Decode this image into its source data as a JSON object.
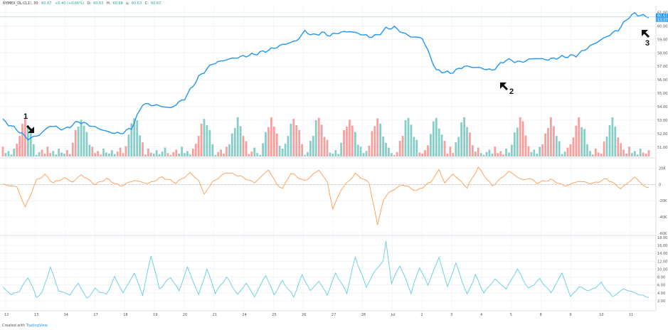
{
  "header": {
    "symbol": "NYMEX_DL:CL1!, 30",
    "last": "60.67",
    "change": "+0.40 (+0.66%)",
    "o_label": "O:",
    "o_value": "60.63",
    "h_label": "H:",
    "h_value": "60.68",
    "l_label": "L:",
    "l_value": "60.63",
    "c_label": "C:",
    "c_value": "60.67"
  },
  "credit": {
    "prefix": "Created with",
    "brand": "TradingView"
  },
  "colors": {
    "price_line": "#2196f3",
    "volume_up": "#26a69a",
    "volume_down": "#ef5350",
    "oscillator": "#ff9b50",
    "volatility": "#63cde0",
    "grid": "#e9ecf2",
    "axis_text": "#555555"
  },
  "chart_data": [
    {
      "panel": "price",
      "type": "line",
      "xlabel": "",
      "ylabel": "",
      "ylim": [
        50.3,
        61.4
      ],
      "y_ticks": [
        "61.00",
        "60.00",
        "59.00",
        "58.00",
        "57.00",
        "56.00",
        "55.00",
        "54.00",
        "53.00",
        "52.00",
        "51.00"
      ],
      "last_price_labels": [
        "60.67",
        "13:37"
      ],
      "x_index": [
        0,
        2,
        5,
        9,
        13,
        17,
        22,
        27,
        30,
        34,
        38,
        42,
        46,
        50,
        55,
        60,
        65,
        70,
        75,
        80,
        85,
        90,
        95,
        100,
        105,
        108,
        111,
        114,
        117,
        120,
        124,
        128,
        131,
        134,
        137,
        140,
        143,
        146,
        150,
        155,
        160,
        165,
        170,
        175,
        180,
        185,
        190,
        195,
        200,
        205,
        210,
        215,
        220,
        224,
        226,
        228,
        231
      ],
      "values": [
        53.0,
        52.7,
        52.3,
        51.6,
        51.9,
        52.6,
        52.3,
        52.9,
        52.7,
        52.4,
        52.1,
        52.0,
        52.4,
        54.2,
        54.1,
        53.9,
        54.6,
        56.2,
        57.2,
        57.5,
        57.7,
        57.9,
        58.2,
        58.6,
        58.9,
        59.6,
        59.3,
        59.5,
        59.3,
        59.5,
        59.6,
        59.4,
        59.2,
        59.3,
        59.8,
        59.9,
        59.5,
        59.2,
        59.1,
        56.7,
        56.5,
        57.0,
        56.9,
        56.7,
        57.5,
        57.3,
        57.6,
        57.5,
        57.7,
        57.8,
        58.5,
        59.1,
        59.7,
        60.7,
        60.9,
        60.8,
        60.67
      ],
      "annotations": [
        "1",
        "2",
        "3"
      ]
    },
    {
      "panel": "volume",
      "type": "bar",
      "description_free": true,
      "pattern": [
        1,
        0.35,
        0.55,
        0.2,
        0.8,
        0.4,
        0.3,
        0.65,
        0.25,
        0.5,
        0.9,
        0.35,
        0.15,
        0.45,
        0.7,
        0.3
      ],
      "spike_index": [
        8,
        28,
        47,
        72,
        84,
        96,
        104,
        113,
        124,
        134,
        145,
        155,
        165,
        185,
        196,
        206,
        218
      ],
      "ylim": [
        0,
        1
      ]
    },
    {
      "panel": "oscillator",
      "type": "line",
      "ylim": [
        -60000,
        30000
      ],
      "y_ticks": [
        "20K",
        "0",
        "-20K",
        "-40K",
        "-60K"
      ],
      "x_index": [
        0,
        5,
        8,
        10,
        12,
        15,
        18,
        22,
        25,
        28,
        33,
        37,
        42,
        47,
        52,
        57,
        62,
        67,
        70,
        72,
        75,
        80,
        85,
        90,
        95,
        98,
        100,
        103,
        108,
        113,
        116,
        118,
        121,
        126,
        131,
        134,
        136,
        138,
        143,
        148,
        153,
        156,
        158,
        161,
        166,
        170,
        175,
        181,
        186,
        188,
        191,
        196,
        201,
        206,
        211,
        216,
        221,
        226,
        230
      ],
      "values": [
        0,
        -3000,
        -28000,
        -12000,
        5000,
        12000,
        2000,
        8000,
        3000,
        12000,
        0,
        7000,
        -2000,
        5000,
        1000,
        9000,
        2000,
        14000,
        5000,
        -12000,
        3000,
        15000,
        10000,
        2000,
        18000,
        0,
        -5000,
        14000,
        4000,
        18000,
        3000,
        -30000,
        -6000,
        13000,
        2000,
        -50000,
        -20000,
        -10000,
        0,
        -8000,
        3000,
        18000,
        2000,
        13000,
        -4000,
        21000,
        -2000,
        16000,
        5000,
        8000,
        2000,
        6000,
        -2000,
        4000,
        1000,
        7000,
        -5000,
        9000,
        -4000
      ]
    },
    {
      "panel": "volatility",
      "type": "line",
      "ylim": [
        0,
        18
      ],
      "y_ticks": [
        "18.00",
        "16.00",
        "14.00",
        "12.00",
        "10.00",
        "8.00",
        "6.00",
        "4.00",
        "2.00"
      ],
      "x_index": [
        0,
        3,
        6,
        9,
        12,
        14,
        17,
        20,
        24,
        27,
        30,
        33,
        37,
        40,
        43,
        47,
        50,
        53,
        56,
        60,
        63,
        66,
        70,
        73,
        76,
        80,
        84,
        87,
        90,
        94,
        97,
        100,
        104,
        107,
        110,
        113,
        116,
        119,
        123,
        126,
        130,
        133,
        136,
        137,
        139,
        142,
        146,
        149,
        152,
        156,
        159,
        162,
        166,
        169,
        172,
        176,
        180,
        184,
        188,
        192,
        196,
        200,
        203,
        206,
        210,
        214,
        218,
        222,
        226,
        230
      ],
      "values": [
        5.5,
        3.5,
        4.5,
        8.0,
        3.0,
        4.0,
        10.5,
        4.5,
        3.5,
        6.5,
        2.5,
        5.0,
        3.5,
        8.0,
        4.0,
        9.0,
        3.5,
        13.5,
        5.0,
        8.0,
        4.5,
        10.5,
        3.5,
        10.0,
        4.0,
        8.0,
        3.5,
        6.5,
        3.0,
        8.5,
        3.5,
        7.0,
        3.0,
        8.5,
        4.5,
        7.0,
        3.5,
        9.0,
        4.0,
        13.0,
        5.5,
        9.5,
        12.0,
        17.0,
        6.5,
        11.0,
        4.0,
        10.5,
        6.0,
        13.0,
        5.5,
        11.5,
        3.5,
        8.5,
        4.0,
        7.5,
        5.0,
        10.0,
        5.0,
        7.5,
        4.0,
        9.0,
        3.0,
        5.5,
        4.5,
        6.5,
        3.0,
        5.0,
        4.0,
        3.0
      ]
    }
  ],
  "x_axis": {
    "labels": [
      "12",
      "13",
      "14",
      "17",
      "18",
      "19",
      "20",
      "21",
      "24",
      "25",
      "26",
      "27",
      "28",
      "Jul",
      "2",
      "3",
      "4",
      "5",
      "8",
      "9",
      "10",
      "11"
    ]
  }
}
